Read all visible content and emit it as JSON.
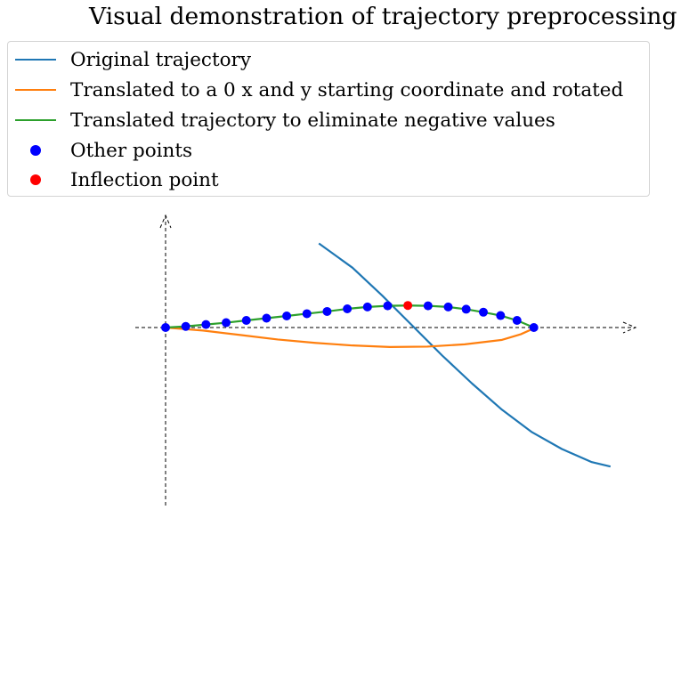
{
  "chart_data": {
    "type": "line",
    "title": "Visual demonstration of trajectory preprocessing",
    "xlabel": "",
    "ylabel": "",
    "axes_visible": false,
    "reference_axes": "dashed arrows through origin",
    "xlim": [
      -0.08,
      1.28
    ],
    "ylim": [
      -0.48,
      0.31
    ],
    "legend_position": "top (above plot)",
    "colors": {
      "original": "#1f77b4",
      "translated_rotated": "#ff7f0e",
      "translated_positive": "#2ca02c",
      "other_points": "#0000ff",
      "inflection": "#ff0000"
    },
    "series": [
      {
        "name": "Original trajectory",
        "x": [
          0.41,
          0.5,
          0.58,
          0.66,
          0.74,
          0.82,
          0.9,
          0.98,
          1.06,
          1.14,
          1.19
        ],
        "y": [
          0.225,
          0.16,
          0.085,
          0.005,
          -0.075,
          -0.15,
          -0.22,
          -0.28,
          -0.325,
          -0.36,
          -0.372
        ]
      },
      {
        "name": "Translated to a 0 x and y starting coordinate and rotated",
        "x": [
          0.0,
          0.1,
          0.2,
          0.3,
          0.4,
          0.5,
          0.6,
          0.7,
          0.8,
          0.9,
          0.95,
          0.99
        ],
        "y": [
          0.0,
          -0.008,
          -0.02,
          -0.032,
          -0.041,
          -0.048,
          -0.052,
          -0.051,
          -0.045,
          -0.033,
          -0.018,
          0.0
        ]
      },
      {
        "name": "Translated trajectory to eliminate negative values",
        "x": [
          0.0,
          0.054,
          0.108,
          0.162,
          0.216,
          0.27,
          0.324,
          0.378,
          0.432,
          0.486,
          0.54,
          0.594,
          0.648,
          0.702,
          0.756,
          0.804,
          0.85,
          0.896,
          0.94,
          0.985
        ],
        "y": [
          0.0,
          0.003,
          0.008,
          0.013,
          0.019,
          0.025,
          0.031,
          0.037,
          0.043,
          0.05,
          0.055,
          0.058,
          0.059,
          0.058,
          0.055,
          0.049,
          0.041,
          0.032,
          0.019,
          0.0
        ]
      }
    ],
    "points": {
      "other": {
        "name": "Other points",
        "x": [
          0.0,
          0.054,
          0.108,
          0.162,
          0.216,
          0.27,
          0.324,
          0.378,
          0.432,
          0.486,
          0.54,
          0.594,
          0.702,
          0.756,
          0.804,
          0.85,
          0.896,
          0.94,
          0.985
        ],
        "y": [
          0.0,
          0.003,
          0.008,
          0.013,
          0.019,
          0.025,
          0.031,
          0.037,
          0.043,
          0.05,
          0.055,
          0.058,
          0.058,
          0.055,
          0.049,
          0.041,
          0.032,
          0.019,
          0.0
        ]
      },
      "inflection": {
        "name": "Inflection point",
        "x": [
          0.648
        ],
        "y": [
          0.059
        ]
      }
    }
  },
  "legend": {
    "items": [
      {
        "label": "Original trajectory",
        "kind": "line",
        "color": "#1f77b4"
      },
      {
        "label": "Translated to a 0 x and y starting coordinate and rotated",
        "kind": "line",
        "color": "#ff7f0e"
      },
      {
        "label": "Translated trajectory to eliminate negative values",
        "kind": "line",
        "color": "#2ca02c"
      },
      {
        "label": "Other points",
        "kind": "dot",
        "color": "#0000ff"
      },
      {
        "label": "Inflection point",
        "kind": "dot",
        "color": "#ff0000"
      }
    ]
  }
}
